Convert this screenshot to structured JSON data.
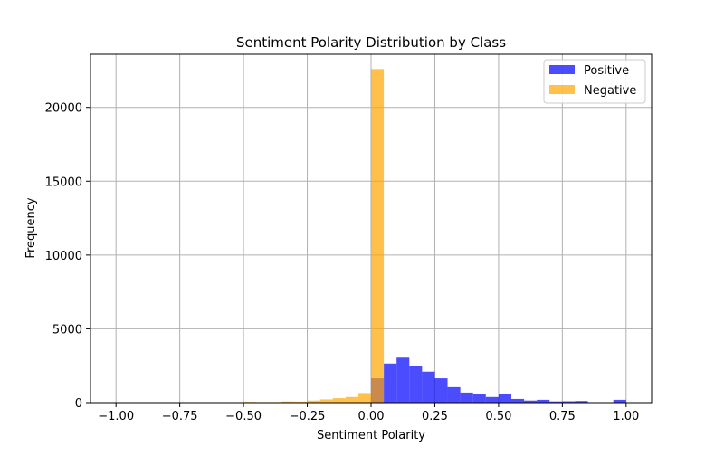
{
  "chart_data": {
    "type": "bar",
    "title": "Sentiment Polarity Distribution by Class",
    "xlabel": "Sentiment Polarity",
    "ylabel": "Frequency",
    "xlim": [
      -1.1,
      1.1
    ],
    "ylim": [
      0,
      23600
    ],
    "x_ticks": [
      -1.0,
      -0.75,
      -0.5,
      -0.25,
      0.0,
      0.25,
      0.5,
      0.75,
      1.0
    ],
    "x_tick_labels": [
      "−1.00",
      "−0.75",
      "−0.50",
      "−0.25",
      "0.00",
      "0.25",
      "0.50",
      "0.75",
      "1.00"
    ],
    "y_ticks": [
      0,
      5000,
      10000,
      15000,
      20000
    ],
    "y_tick_labels": [
      "0",
      "5000",
      "10000",
      "15000",
      "20000"
    ],
    "grid": true,
    "legend_position": "top-right",
    "bin_width": 0.05,
    "series": [
      {
        "name": "Positive",
        "color": "#0000ff",
        "opacity": 0.7,
        "bin_starts": [
          0.0,
          0.05,
          0.1,
          0.15,
          0.2,
          0.25,
          0.3,
          0.35,
          0.4,
          0.45,
          0.5,
          0.55,
          0.6,
          0.65,
          0.7,
          0.75,
          0.8,
          0.85,
          0.9,
          0.95
        ],
        "values": [
          1650,
          2650,
          3050,
          2500,
          2100,
          1650,
          1050,
          680,
          580,
          380,
          600,
          250,
          140,
          190,
          80,
          90,
          110,
          0,
          0,
          190
        ]
      },
      {
        "name": "Negative",
        "color": "#ffa500",
        "opacity": 0.7,
        "bin_starts": [
          -1.0,
          -0.95,
          -0.9,
          -0.85,
          -0.8,
          -0.75,
          -0.7,
          -0.65,
          -0.6,
          -0.55,
          -0.5,
          -0.45,
          -0.4,
          -0.35,
          -0.3,
          -0.25,
          -0.2,
          -0.15,
          -0.1,
          -0.05
        ],
        "values": [
          5,
          0,
          0,
          0,
          0,
          5,
          0,
          5,
          5,
          10,
          50,
          40,
          40,
          80,
          70,
          140,
          220,
          300,
          380,
          650
        ]
      },
      {
        "name": "Negative",
        "color": "#ffa500",
        "opacity": 0.7,
        "bin_starts": [
          0.0
        ],
        "values": [
          22600
        ]
      }
    ]
  }
}
